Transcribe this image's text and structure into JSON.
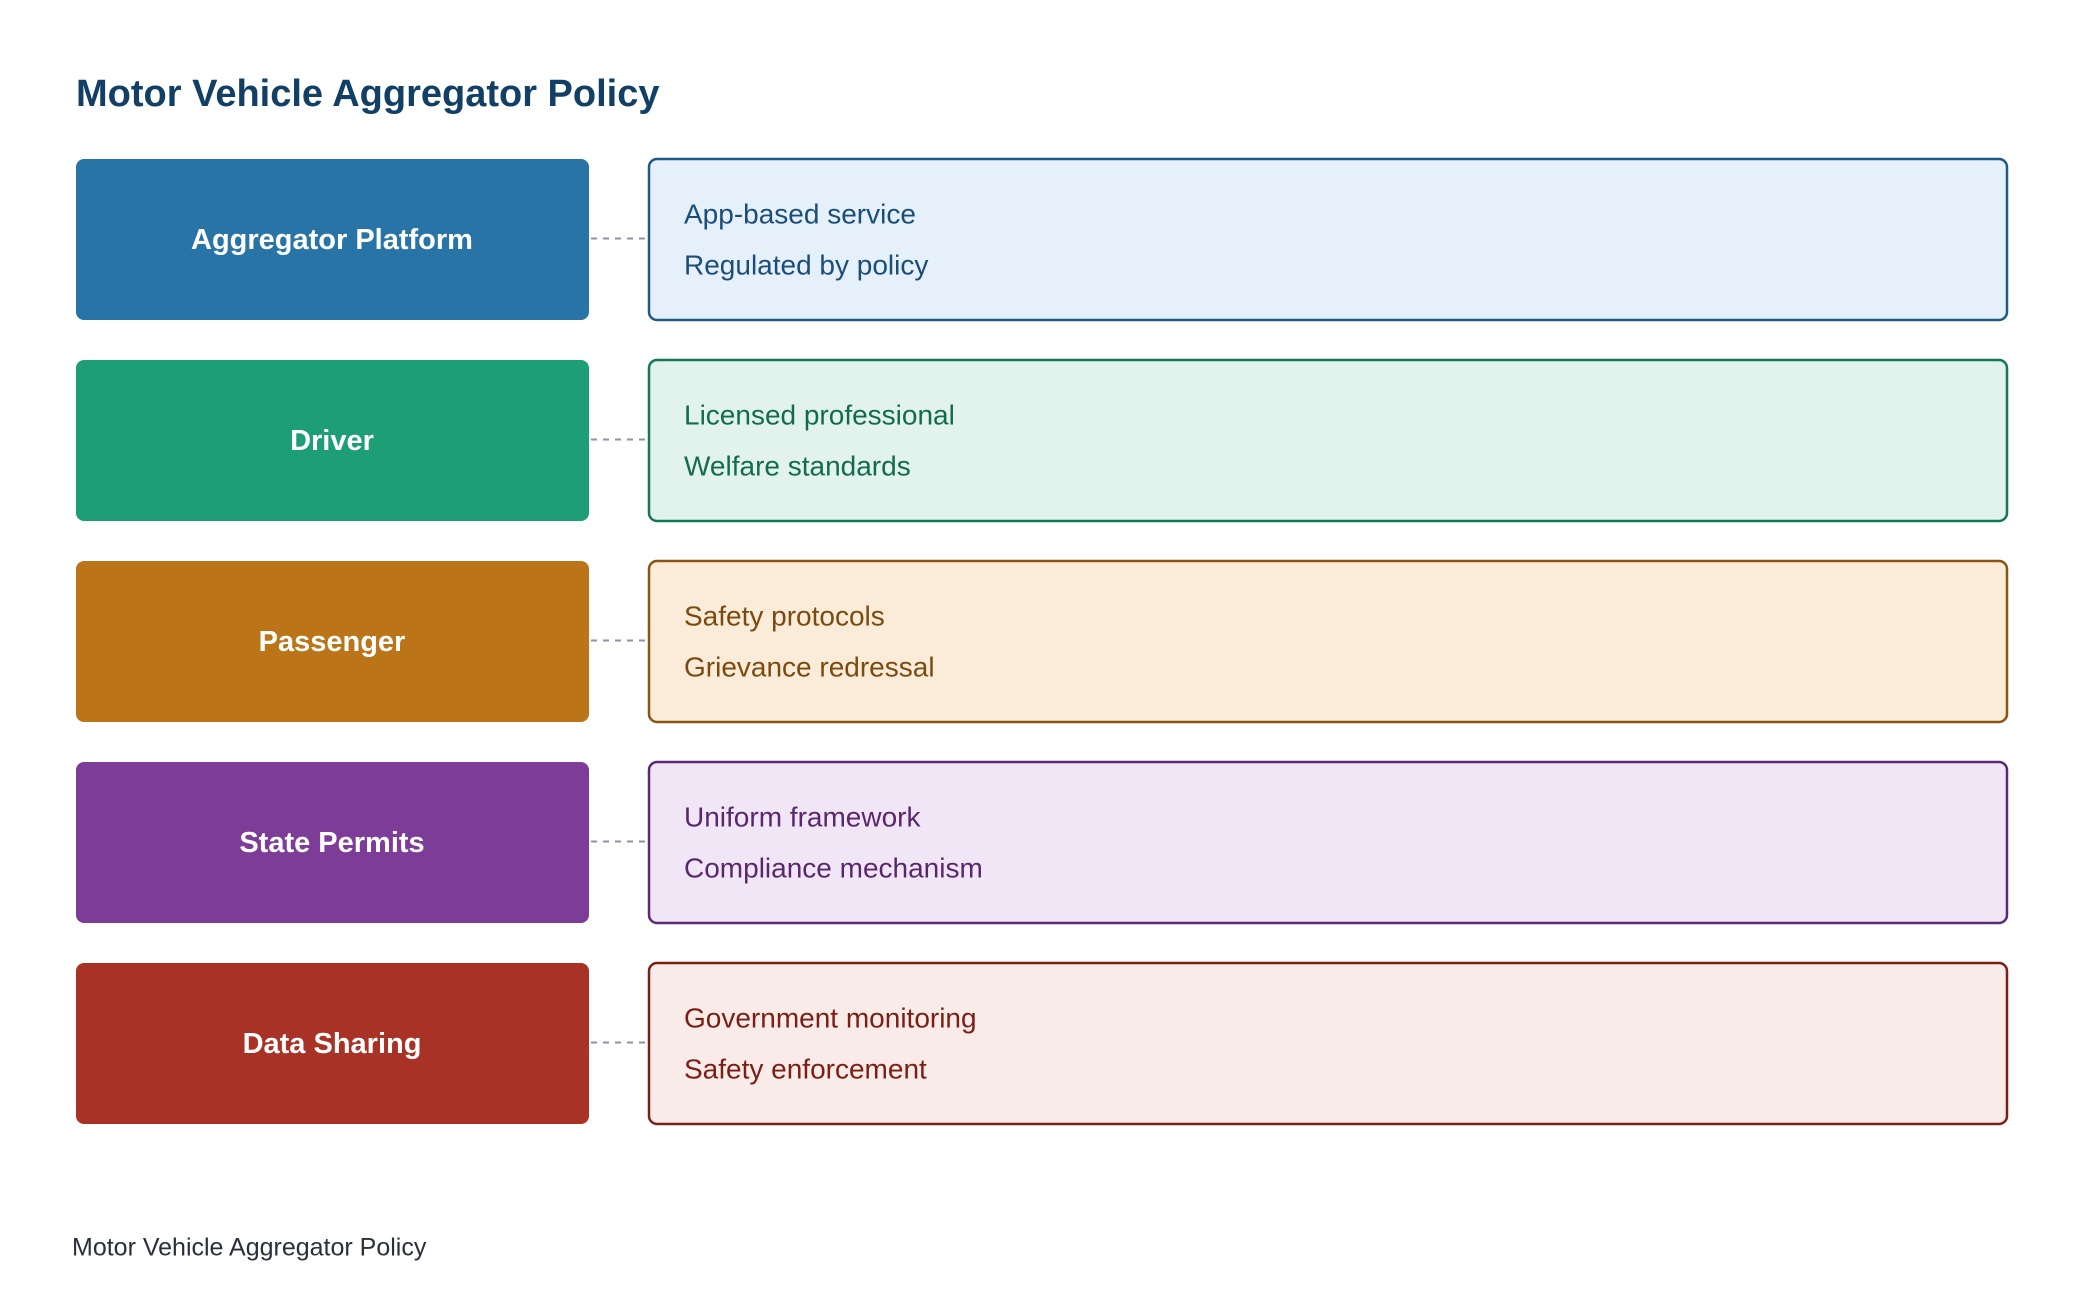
{
  "title": "Motor Vehicle Aggregator Policy",
  "rows": [
    {
      "label": "Aggregator Platform",
      "items": [
        "App-based service",
        "Regulated by policy"
      ]
    },
    {
      "label": "Driver",
      "items": [
        "Licensed professional",
        "Welfare standards"
      ]
    },
    {
      "label": "Passenger",
      "items": [
        "Safety protocols",
        "Grievance redressal"
      ]
    },
    {
      "label": "State Permits",
      "items": [
        "Uniform framework",
        "Compliance mechanism"
      ]
    },
    {
      "label": "Data Sharing",
      "items": [
        "Government monitoring",
        "Safety enforcement"
      ]
    }
  ],
  "footer": "Motor Vehicle Aggregator Policy"
}
